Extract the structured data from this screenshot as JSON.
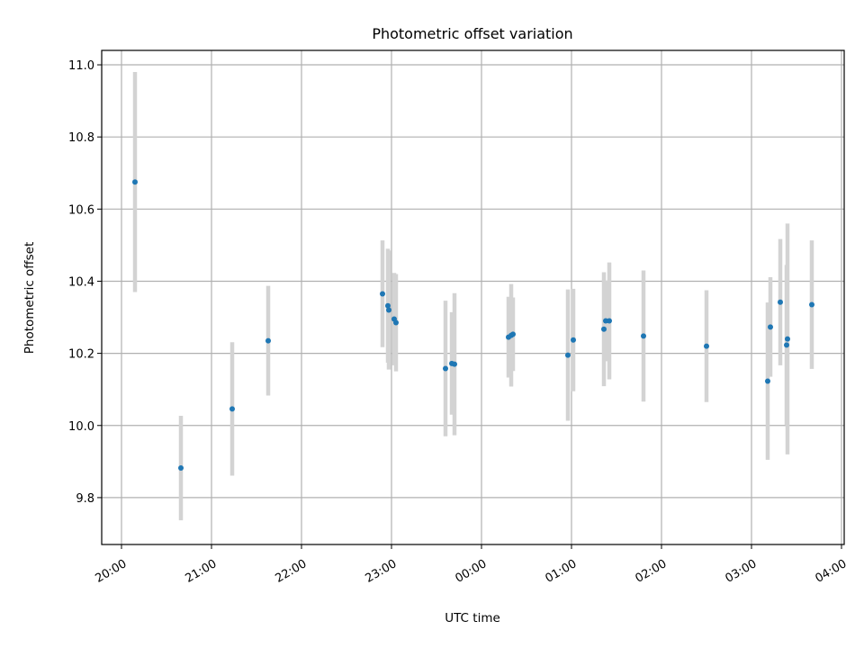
{
  "chart_data": {
    "type": "scatter",
    "title": "Photometric offset variation",
    "xlabel": "UTC time",
    "ylabel": "Photometric offset",
    "grid": true,
    "xlim_hours": [
      19.78,
      28.03
    ],
    "ylim": [
      9.67,
      11.04
    ],
    "x_ticks": [
      {
        "value": 20,
        "label": "20:00"
      },
      {
        "value": 21,
        "label": "21:00"
      },
      {
        "value": 22,
        "label": "22:00"
      },
      {
        "value": 23,
        "label": "23:00"
      },
      {
        "value": 24,
        "label": "00:00"
      },
      {
        "value": 25,
        "label": "01:00"
      },
      {
        "value": 26,
        "label": "02:00"
      },
      {
        "value": 27,
        "label": "03:00"
      },
      {
        "value": 28,
        "label": "04:00"
      }
    ],
    "y_ticks": [
      {
        "value": 9.8,
        "label": "9.8"
      },
      {
        "value": 10.0,
        "label": "10.0"
      },
      {
        "value": 10.2,
        "label": "10.2"
      },
      {
        "value": 10.4,
        "label": "10.4"
      },
      {
        "value": 10.6,
        "label": "10.6"
      },
      {
        "value": 10.8,
        "label": "10.8"
      },
      {
        "value": 11.0,
        "label": "11.0"
      }
    ],
    "x_time_hours": [
      20.15,
      20.66,
      21.23,
      21.63,
      22.9,
      22.96,
      22.97,
      23.03,
      23.05,
      23.6,
      23.67,
      23.7,
      24.3,
      24.33,
      24.35,
      24.96,
      25.02,
      25.36,
      25.38,
      25.42,
      25.8,
      26.5,
      27.18,
      27.21,
      27.32,
      27.39,
      27.4,
      27.67
    ],
    "y": [
      10.675,
      9.882,
      10.046,
      10.235,
      10.365,
      10.332,
      10.32,
      10.295,
      10.285,
      10.158,
      10.172,
      10.17,
      10.245,
      10.25,
      10.253,
      10.195,
      10.237,
      10.267,
      10.29,
      10.29,
      10.248,
      10.22,
      10.123,
      10.273,
      10.342,
      10.223,
      10.24,
      10.335
    ],
    "y_err": [
      0.305,
      0.145,
      0.185,
      0.152,
      0.148,
      0.158,
      0.165,
      0.128,
      0.135,
      0.188,
      0.142,
      0.197,
      0.112,
      0.142,
      0.102,
      0.182,
      0.142,
      0.158,
      0.112,
      0.162,
      0.182,
      0.155,
      0.218,
      0.138,
      0.175,
      0.222,
      0.32,
      0.178
    ]
  }
}
